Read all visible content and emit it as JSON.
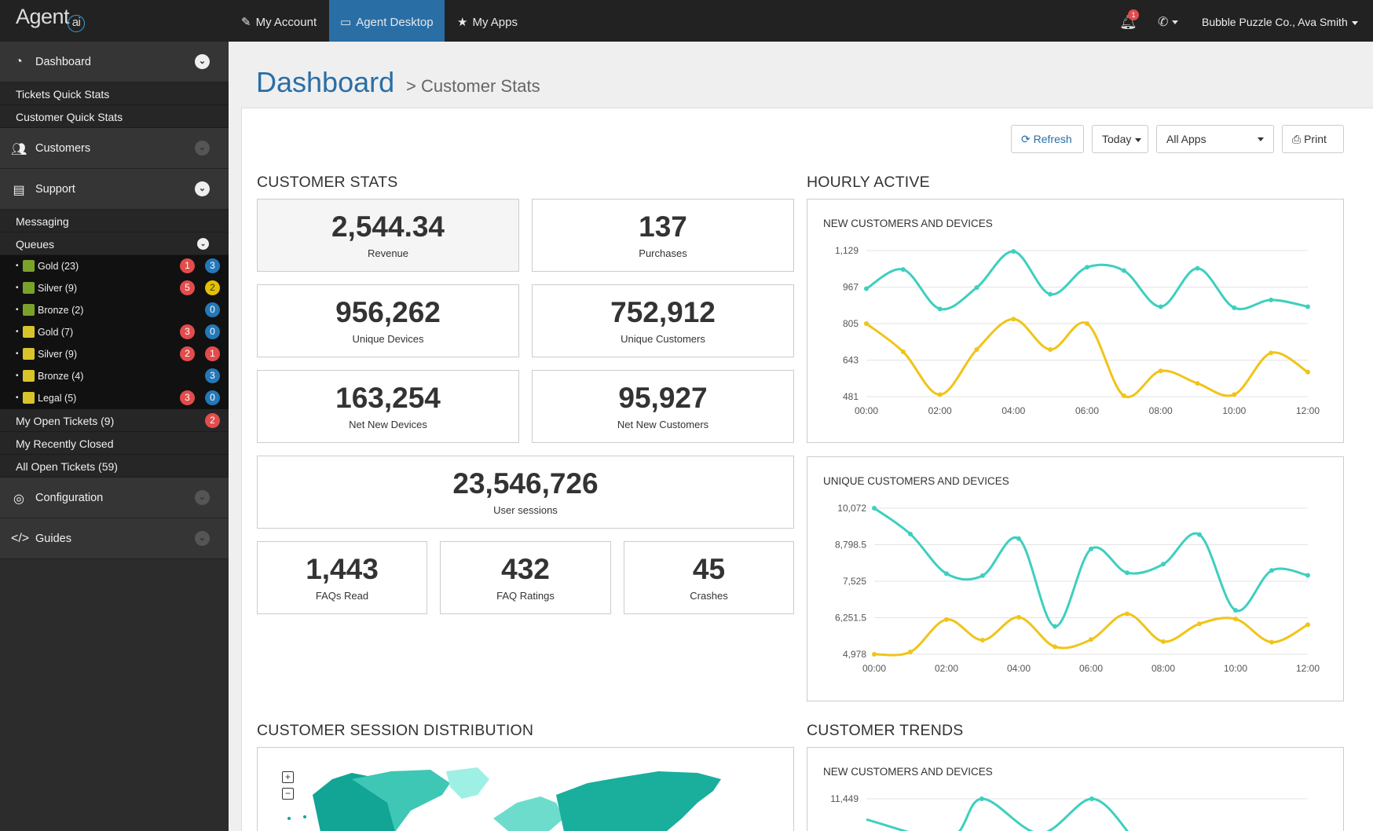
{
  "topbar": {
    "logo": "Agent",
    "logo_suffix": "ai",
    "tabs": [
      {
        "label": "My Account",
        "icon": "edit-icon"
      },
      {
        "label": "Agent Desktop",
        "icon": "desktop-icon",
        "active": true
      },
      {
        "label": "My Apps",
        "icon": "star-icon"
      }
    ],
    "notification_count": "1",
    "user": "Bubble Puzzle Co., Ava Smith"
  },
  "sidebar": {
    "sections": {
      "dashboard": "Dashboard",
      "customers": "Customers",
      "support": "Support",
      "configuration": "Configuration",
      "guides": "Guides"
    },
    "dashboard_items": [
      "Tickets Quick Stats",
      "Customer Quick Stats"
    ],
    "support_items": {
      "messaging": "Messaging",
      "queues": "Queues",
      "my_open": "My Open Tickets (9)",
      "my_open_badge": "2",
      "recently_closed": "My Recently Closed",
      "all_open": "All Open Tickets (59)"
    },
    "queues": [
      {
        "label": "Gold (23)",
        "icon": "green",
        "red": "1",
        "blue": "3"
      },
      {
        "label": "Silver (9)",
        "icon": "green",
        "red": "5",
        "yellow": "2"
      },
      {
        "label": "Bronze (2)",
        "icon": "green",
        "blue": "0"
      },
      {
        "label": "Gold (7)",
        "icon": "yellow",
        "red": "3",
        "blue": "0"
      },
      {
        "label": "Silver (9)",
        "icon": "yellow",
        "red": "2",
        "red2": "1"
      },
      {
        "label": "Bronze (4)",
        "icon": "yellow",
        "blue": "3"
      },
      {
        "label": "Legal (5)",
        "icon": "yellow",
        "red": "3",
        "blue": "0"
      }
    ]
  },
  "header": {
    "title": "Dashboard",
    "subtitle": "> Customer Stats"
  },
  "toolbar": {
    "refresh": "Refresh",
    "today": "Today",
    "apps": "All Apps",
    "print": "Print"
  },
  "customer_stats": {
    "heading": "CUSTOMER STATS",
    "revenue": {
      "value": "2,544.34",
      "label": "Revenue"
    },
    "purchases": {
      "value": "137",
      "label": "Purchases"
    },
    "unique_devices": {
      "value": "956,262",
      "label": "Unique Devices"
    },
    "unique_customers": {
      "value": "752,912",
      "label": "Unique Customers"
    },
    "net_new_devices": {
      "value": "163,254",
      "label": "Net New Devices"
    },
    "net_new_customers": {
      "value": "95,927",
      "label": "Net New Customers"
    },
    "user_sessions": {
      "value": "23,546,726",
      "label": "User sessions"
    },
    "faqs_read": {
      "value": "1,443",
      "label": "FAQs Read"
    },
    "faq_ratings": {
      "value": "432",
      "label": "FAQ Ratings"
    },
    "crashes": {
      "value": "45",
      "label": "Crashes"
    }
  },
  "hourly_heading": "HOURLY ACTIVE",
  "session_heading": "CUSTOMER SESSION DISTRIBUTION",
  "trends_heading": "CUSTOMER TRENDS",
  "map_controls": {
    "zoom_in": "+",
    "zoom_out": "−"
  },
  "colors": {
    "teal": "#3ecfbf",
    "yellow": "#f0c419",
    "accent": "#2a6ea6"
  },
  "chart_data": [
    {
      "type": "line",
      "title": "NEW CUSTOMERS AND DEVICES",
      "x": [
        "00:00",
        "01:00",
        "02:00",
        "03:00",
        "04:00",
        "05:00",
        "06:00",
        "07:00",
        "08:00",
        "09:00",
        "10:00",
        "11:00",
        "12:00"
      ],
      "xticks": [
        "00:00",
        "02:00",
        "04:00",
        "06:00",
        "08:00",
        "10:00",
        "12:00"
      ],
      "yticks": [
        "1,129",
        "967",
        "805",
        "643",
        "481"
      ],
      "ylim": [
        481,
        1129
      ],
      "series": [
        {
          "color": "#3ecfbf",
          "values": [
            960,
            1045,
            870,
            965,
            1125,
            935,
            1055,
            1040,
            880,
            1050,
            875,
            910,
            880
          ]
        },
        {
          "color": "#f0c419",
          "values": [
            805,
            680,
            490,
            690,
            825,
            690,
            805,
            485,
            595,
            540,
            490,
            675,
            590
          ]
        }
      ]
    },
    {
      "type": "line",
      "title": "UNIQUE CUSTOMERS AND DEVICES",
      "x": [
        "00:00",
        "01:00",
        "02:00",
        "03:00",
        "04:00",
        "05:00",
        "06:00",
        "07:00",
        "08:00",
        "09:00",
        "10:00",
        "11:00",
        "12:00"
      ],
      "xticks": [
        "00:00",
        "02:00",
        "04:00",
        "06:00",
        "08:00",
        "10:00",
        "12:00"
      ],
      "yticks": [
        "10,072",
        "8,798.5",
        "7,525",
        "6,251.5",
        "4,978"
      ],
      "ylim": [
        4978,
        10072
      ],
      "series": [
        {
          "color": "#3ecfbf",
          "values": [
            10072,
            9170,
            7790,
            7720,
            9010,
            5950,
            8650,
            7820,
            8120,
            9150,
            6510,
            7900,
            7730
          ]
        },
        {
          "color": "#f0c419",
          "values": [
            4978,
            5060,
            6190,
            5470,
            6270,
            5240,
            5490,
            6390,
            5420,
            6040,
            6210,
            5400,
            6010
          ]
        }
      ]
    },
    {
      "type": "line",
      "title": "NEW CUSTOMERS AND DEVICES",
      "yticks": [
        "11,449"
      ],
      "series": [
        {
          "color": "#3ecfbf",
          "values": [
            11000,
            10600,
            11449,
            10700,
            11449,
            10700
          ]
        }
      ]
    }
  ]
}
